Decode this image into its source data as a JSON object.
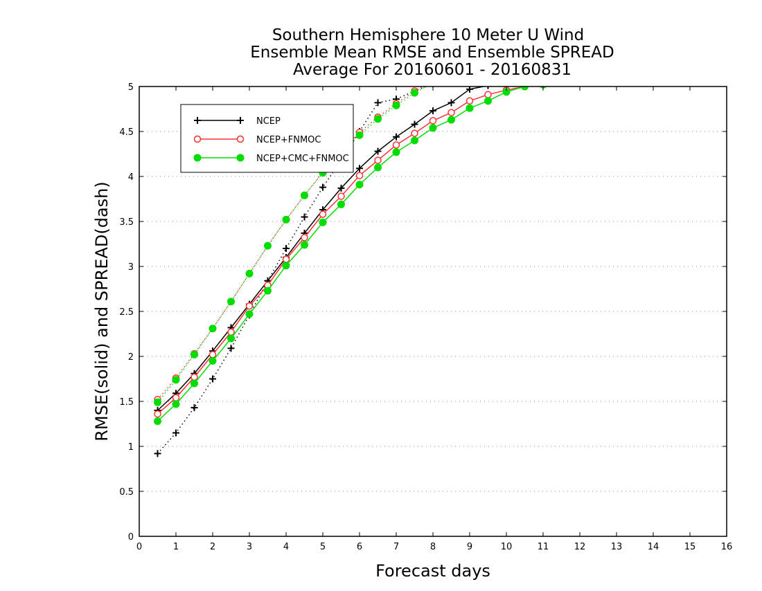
{
  "chart_data": {
    "type": "line",
    "title_lines": [
      "Southern Hemisphere 10 Meter U Wind",
      "Ensemble Mean RMSE and Ensemble SPREAD",
      "Average For 20160601 - 20160831"
    ],
    "xlabel": "Forecast days",
    "ylabel": "RMSE(solid) and SPREAD(dash)",
    "xlim": [
      0,
      16
    ],
    "ylim": [
      0,
      5
    ],
    "x_ticks": [
      "0",
      "1",
      "2",
      "3",
      "4",
      "5",
      "6",
      "7",
      "8",
      "9",
      "10",
      "11",
      "12",
      "13",
      "14",
      "15",
      "16"
    ],
    "y_ticks": [
      "0",
      "0.5",
      "1",
      "1.5",
      "2",
      "2.5",
      "3",
      "3.5",
      "4",
      "4.5",
      "5"
    ],
    "grid": "horizontal-dotted",
    "legend_position": "top-left",
    "x": [
      0.5,
      1,
      1.5,
      2,
      2.5,
      3,
      3.5,
      4,
      4.5,
      5,
      5.5,
      6,
      6.5,
      7,
      7.5,
      8,
      8.5,
      9,
      9.5,
      10,
      10.5,
      11
    ],
    "series": [
      {
        "name": "NCEP",
        "color": "#000000",
        "marker": "plus",
        "rmse": [
          1.4,
          1.59,
          1.81,
          2.06,
          2.32,
          2.58,
          2.84,
          3.1,
          3.37,
          3.63,
          3.87,
          4.09,
          4.28,
          4.44,
          4.58,
          4.73,
          4.82,
          4.97,
          5.01,
          5.05,
          5.08,
          5.1
        ],
        "spread": [
          0.92,
          1.15,
          1.43,
          1.75,
          2.09,
          2.46,
          2.84,
          3.2,
          3.55,
          3.88,
          4.18,
          4.5,
          4.82,
          4.86,
          4.95,
          5.03,
          5.08,
          5.12,
          5.15,
          5.18,
          5.2,
          5.22
        ]
      },
      {
        "name": "NCEP+FNMOC",
        "color": "#ff3030",
        "marker": "open-circle",
        "rmse": [
          1.36,
          1.54,
          1.77,
          2.02,
          2.27,
          2.56,
          2.79,
          3.08,
          3.32,
          3.58,
          3.78,
          4.01,
          4.18,
          4.35,
          4.48,
          4.62,
          4.71,
          4.84,
          4.91,
          4.96,
          5.0,
          5.02
        ],
        "spread": [
          1.52,
          1.76,
          2.03,
          2.31,
          2.61,
          2.92,
          3.23,
          3.52,
          3.79,
          4.05,
          4.28,
          4.49,
          4.66,
          4.81,
          4.95,
          5.06,
          5.15,
          5.2,
          5.24,
          5.27,
          5.3,
          5.32
        ]
      },
      {
        "name": "NCEP+CMC+FNMOC",
        "color": "#00dd00",
        "marker": "filled-circle",
        "rmse": [
          1.28,
          1.47,
          1.7,
          1.95,
          2.2,
          2.47,
          2.73,
          3.01,
          3.24,
          3.49,
          3.69,
          3.91,
          4.1,
          4.27,
          4.4,
          4.54,
          4.63,
          4.76,
          4.84,
          4.94,
          5.0,
          5.02
        ],
        "spread": [
          1.49,
          1.74,
          2.02,
          2.31,
          2.61,
          2.92,
          3.23,
          3.52,
          3.79,
          4.04,
          4.26,
          4.46,
          4.64,
          4.79,
          4.93,
          5.04,
          5.13,
          5.19,
          5.23,
          5.26,
          5.29,
          5.31
        ]
      }
    ]
  }
}
